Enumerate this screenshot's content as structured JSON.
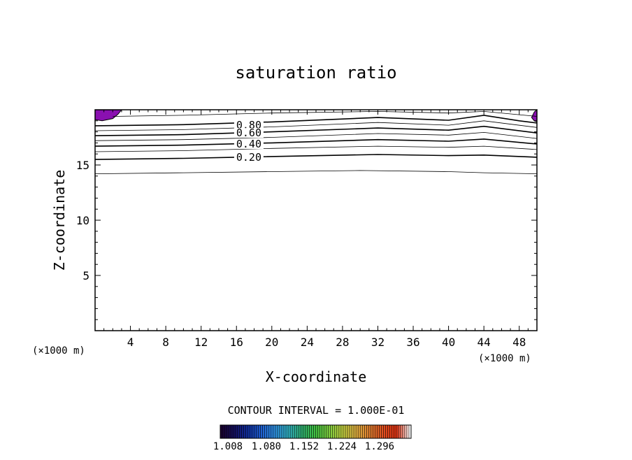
{
  "chart_data": {
    "type": "contour",
    "title": "saturation ratio",
    "xlabel": "X-coordinate",
    "ylabel": "Z-coordinate",
    "x_unit_left": "(×1000 m)",
    "x_unit_right": "(×1000 m)",
    "xlim": [
      0,
      50
    ],
    "ylim": [
      0,
      20
    ],
    "x_ticks": [
      4,
      8,
      12,
      16,
      20,
      24,
      28,
      32,
      36,
      40,
      44,
      48
    ],
    "y_ticks": [
      5,
      10,
      15
    ],
    "contour_interval_text": "CONTOUR INTERVAL = 1.000E-01",
    "contour_labels": [
      {
        "value": "0.80",
        "x": 17.4,
        "z": 18.6
      },
      {
        "value": "0.60",
        "x": 17.4,
        "z": 17.9
      },
      {
        "value": "0.40",
        "x": 17.4,
        "z": 16.9
      },
      {
        "value": "0.20",
        "x": 17.4,
        "z": 15.7
      }
    ],
    "contours": [
      {
        "level": 0.1,
        "bold": false,
        "points": [
          [
            0,
            14.2
          ],
          [
            10,
            14.3
          ],
          [
            20,
            14.4
          ],
          [
            30,
            14.5
          ],
          [
            40,
            14.4
          ],
          [
            44,
            14.3
          ],
          [
            50,
            14.2
          ]
        ]
      },
      {
        "level": 0.2,
        "bold": true,
        "points": [
          [
            0,
            15.5
          ],
          [
            10,
            15.6
          ],
          [
            16,
            15.7
          ],
          [
            32,
            15.95
          ],
          [
            40,
            15.85
          ],
          [
            44,
            15.9
          ],
          [
            50,
            15.7
          ]
        ]
      },
      {
        "level": 0.3,
        "bold": false,
        "points": [
          [
            0,
            16.2
          ],
          [
            10,
            16.3
          ],
          [
            20,
            16.5
          ],
          [
            32,
            16.7
          ],
          [
            40,
            16.6
          ],
          [
            44,
            16.7
          ],
          [
            50,
            16.4
          ]
        ]
      },
      {
        "level": 0.4,
        "bold": true,
        "points": [
          [
            0,
            16.7
          ],
          [
            10,
            16.8
          ],
          [
            20,
            17.0
          ],
          [
            32,
            17.3
          ],
          [
            40,
            17.15
          ],
          [
            44,
            17.35
          ],
          [
            50,
            16.9
          ]
        ]
      },
      {
        "level": 0.5,
        "bold": false,
        "points": [
          [
            0,
            17.2
          ],
          [
            10,
            17.3
          ],
          [
            20,
            17.5
          ],
          [
            32,
            17.85
          ],
          [
            40,
            17.7
          ],
          [
            44,
            17.95
          ],
          [
            50,
            17.4
          ]
        ]
      },
      {
        "level": 0.6,
        "bold": true,
        "points": [
          [
            0,
            17.65
          ],
          [
            10,
            17.75
          ],
          [
            20,
            18.0
          ],
          [
            32,
            18.35
          ],
          [
            40,
            18.15
          ],
          [
            44,
            18.5
          ],
          [
            50,
            17.9
          ]
        ]
      },
      {
        "level": 0.7,
        "bold": false,
        "points": [
          [
            0,
            18.1
          ],
          [
            10,
            18.2
          ],
          [
            20,
            18.45
          ],
          [
            32,
            18.85
          ],
          [
            40,
            18.6
          ],
          [
            44,
            19.0
          ],
          [
            50,
            18.4
          ]
        ]
      },
      {
        "level": 0.8,
        "bold": true,
        "points": [
          [
            0,
            18.55
          ],
          [
            10,
            18.65
          ],
          [
            20,
            18.9
          ],
          [
            32,
            19.3
          ],
          [
            40,
            19.05
          ],
          [
            44,
            19.5
          ],
          [
            48,
            19.0
          ],
          [
            50,
            18.8
          ]
        ]
      },
      {
        "level": 0.9,
        "bold": false,
        "points": [
          [
            2,
            19.4
          ],
          [
            10,
            19.5
          ],
          [
            20,
            19.7
          ],
          [
            32,
            19.85
          ],
          [
            40,
            19.7
          ],
          [
            44,
            19.85
          ],
          [
            48,
            19.55
          ],
          [
            50,
            19.4
          ]
        ]
      }
    ],
    "filled_regions": [
      {
        "color": "#8a10b0",
        "points": [
          [
            0,
            20
          ],
          [
            3,
            20
          ],
          [
            2.6,
            19.6
          ],
          [
            2.0,
            19.2
          ],
          [
            0.8,
            19.0
          ],
          [
            0,
            19.1
          ]
        ]
      },
      {
        "color": "#8a10b0",
        "points": [
          [
            50,
            20
          ],
          [
            49.7,
            19.8
          ],
          [
            49.4,
            19.3
          ],
          [
            49.7,
            19.0
          ],
          [
            50,
            18.9
          ]
        ]
      }
    ],
    "colorbar": {
      "tick_labels": [
        "1.008",
        "1.080",
        "1.152",
        "1.224",
        "1.296"
      ],
      "colors": [
        "#1a0030",
        "#141060",
        "#1030a0",
        "#2060d0",
        "#3090e0",
        "#30b0c0",
        "#30b070",
        "#40c040",
        "#80d040",
        "#c0d040",
        "#e0b040",
        "#e08030",
        "#e05020",
        "#e03010",
        "#ffffff"
      ]
    }
  }
}
